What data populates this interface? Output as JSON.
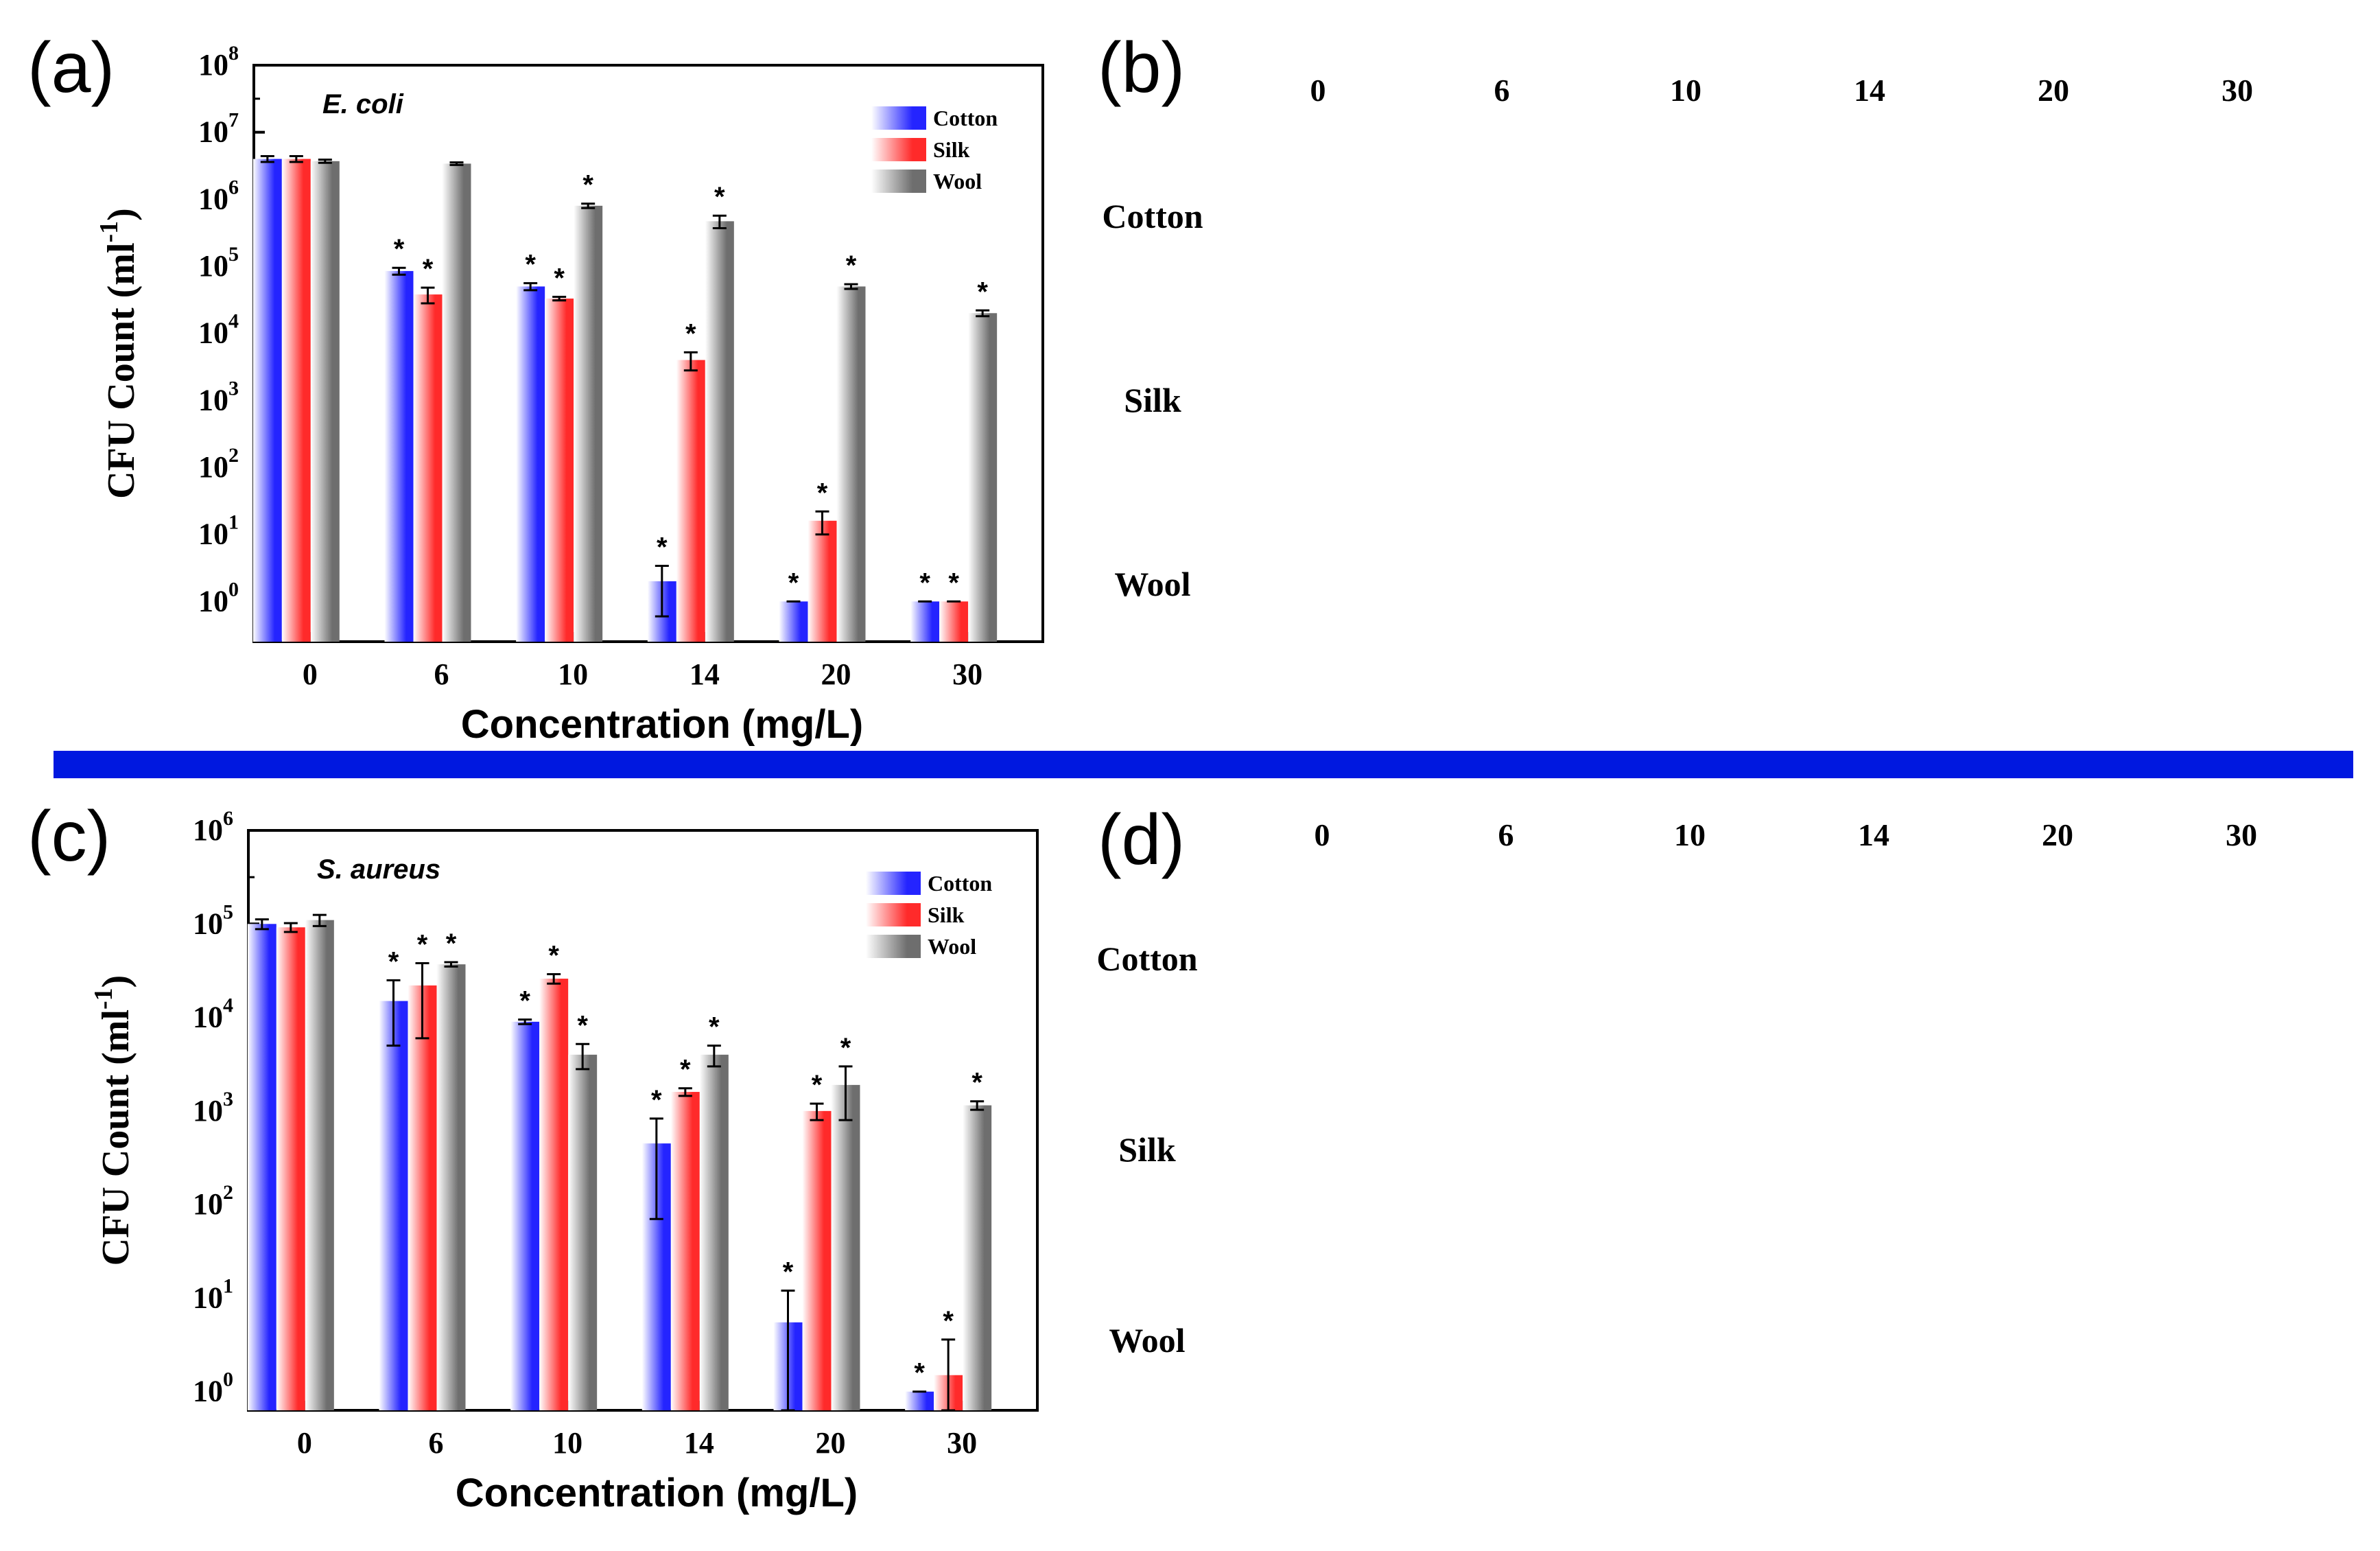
{
  "panels": {
    "a": "(a)",
    "b": "(b)",
    "c": "(c)",
    "d": "(d)"
  },
  "colors": {
    "cotton": "#2424ff",
    "silk": "#ff2a2a",
    "wool": "#6e6e6e",
    "divider": "#0018e0"
  },
  "chart_data": [
    {
      "type": "bar",
      "organism": "E. coli",
      "title": "",
      "xlabel": "Concentration (mg/L)",
      "ylabel": "CFU Count (ml-1)",
      "ylabel_parts": {
        "main": "CFU Count (ml",
        "sup": "-1",
        "close": ")"
      },
      "yscale": "log",
      "ylim_exp": [
        -0.6,
        8
      ],
      "ytick_exps": [
        0,
        1,
        2,
        3,
        4,
        5,
        6,
        7,
        8
      ],
      "categories": [
        "0",
        "6",
        "10",
        "14",
        "20",
        "30"
      ],
      "legend_position": "top-right",
      "series": [
        {
          "name": "Cotton",
          "values": [
            4000000,
            85000,
            50000,
            2,
            1,
            1
          ],
          "errors": [
            400000,
            10000,
            6000,
            1.4,
            0,
            0
          ],
          "star": [
            false,
            true,
            true,
            true,
            true,
            true
          ]
        },
        {
          "name": "Silk",
          "values": [
            4000000,
            38000,
            33000,
            4000,
            16,
            1
          ],
          "errors": [
            400000,
            10000,
            2000,
            1200,
            6,
            0
          ],
          "star": [
            false,
            true,
            true,
            true,
            true,
            true
          ]
        },
        {
          "name": "Wool",
          "values": [
            3700000,
            3400000,
            800000,
            470000,
            50000,
            20000
          ],
          "errors": [
            200000,
            150000,
            60000,
            100000,
            4000,
            2000
          ],
          "star": [
            false,
            false,
            true,
            true,
            true,
            true
          ]
        }
      ]
    },
    {
      "type": "bar",
      "organism": "S. aureus",
      "title": "",
      "xlabel": "Concentration (mg/L)",
      "ylabel": "CFU Count (ml-1)",
      "ylabel_parts": {
        "main": "CFU Count (ml",
        "sup": "-1",
        "close": ")"
      },
      "yscale": "log",
      "ylim_exp": [
        -0.2,
        6
      ],
      "ytick_exps": [
        0,
        1,
        2,
        3,
        4,
        5,
        6
      ],
      "categories": [
        "0",
        "6",
        "10",
        "14",
        "20",
        "30"
      ],
      "legend_position": "top-right",
      "series": [
        {
          "name": "Cotton",
          "values": [
            100000,
            15000,
            9000,
            450,
            5.5,
            1
          ],
          "errors": [
            12000,
            10000,
            500,
            380,
            6.5,
            0
          ],
          "star": [
            false,
            true,
            true,
            true,
            true,
            true
          ]
        },
        {
          "name": "Silk",
          "values": [
            92000,
            22000,
            26000,
            1600,
            1000,
            1.5
          ],
          "errors": [
            10000,
            16000,
            3000,
            150,
            200,
            2.1
          ],
          "star": [
            false,
            true,
            true,
            true,
            true,
            true
          ]
        },
        {
          "name": "Wool",
          "values": [
            110000,
            37000,
            4000,
            4000,
            1900,
            1150
          ],
          "errors": [
            15000,
            2000,
            1200,
            1000,
            1100,
            120
          ],
          "star": [
            false,
            true,
            true,
            true,
            true,
            true
          ]
        }
      ]
    }
  ],
  "plates": {
    "b": {
      "columns": [
        "0",
        "6",
        "10",
        "14",
        "20",
        "30"
      ],
      "rows": [
        "Cotton",
        "Silk",
        "Wool"
      ]
    },
    "d": {
      "columns": [
        "0",
        "6",
        "10",
        "14",
        "20",
        "30"
      ],
      "rows": [
        "Cotton",
        "Silk",
        "Wool"
      ]
    }
  }
}
